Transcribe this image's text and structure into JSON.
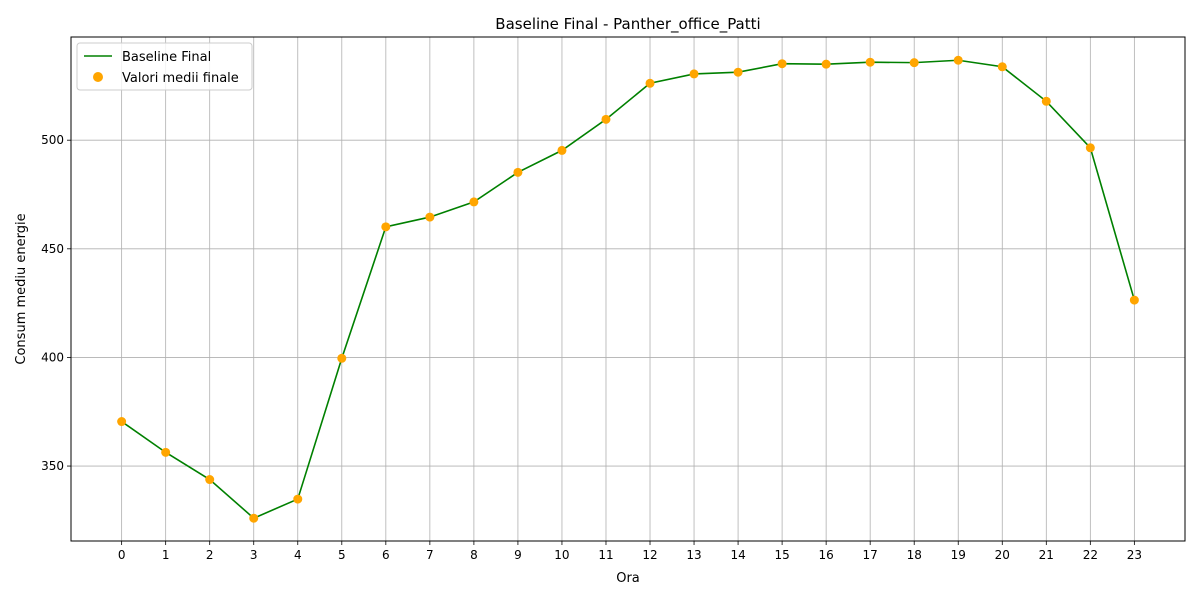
{
  "chart_data": {
    "type": "line",
    "title": "Baseline Final - Panther_office_Patti",
    "xlabel": "Ora",
    "ylabel": "Consum mediu energie",
    "x": [
      0,
      1,
      2,
      3,
      4,
      5,
      6,
      7,
      8,
      9,
      10,
      11,
      12,
      13,
      14,
      15,
      16,
      17,
      18,
      19,
      20,
      21,
      22,
      23
    ],
    "xlim": [
      -1.15,
      24.15
    ],
    "ylim": [
      315.5,
      547.5
    ],
    "yticks": [
      350,
      400,
      450,
      500
    ],
    "grid": true,
    "legend_position": "top-left",
    "series": [
      {
        "name": "Baseline Final",
        "kind": "line",
        "color": "#008000",
        "values": [
          370.5,
          356.3,
          343.8,
          326.0,
          334.8,
          399.6,
          460.1,
          464.6,
          471.6,
          485.2,
          495.3,
          509.6,
          526.2,
          530.5,
          531.3,
          535.2,
          535.0,
          535.9,
          535.7,
          536.8,
          533.8,
          517.9,
          496.5,
          426.4
        ]
      },
      {
        "name": "Valori medii finale",
        "kind": "scatter",
        "color": "#ffa500",
        "values": [
          370.5,
          356.3,
          343.8,
          326.0,
          334.8,
          399.6,
          460.1,
          464.6,
          471.6,
          485.2,
          495.3,
          509.6,
          526.2,
          530.5,
          531.3,
          535.2,
          535.0,
          535.9,
          535.7,
          536.8,
          533.8,
          517.9,
          496.5,
          426.4
        ]
      }
    ]
  }
}
